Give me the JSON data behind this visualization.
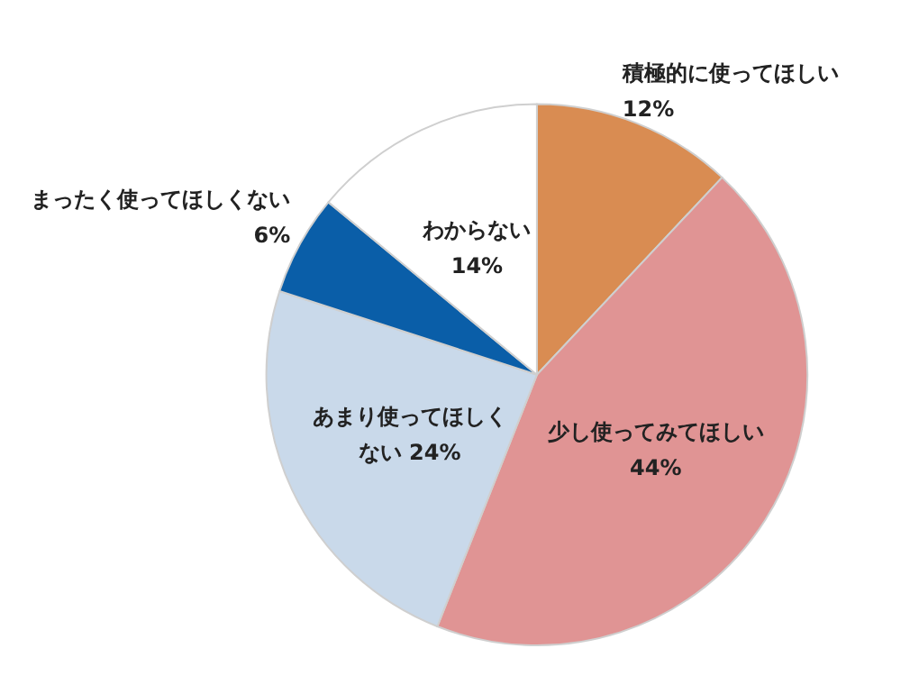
{
  "chart_data": {
    "type": "pie",
    "categories": [
      "積極的に使ってほしい",
      "少し使ってみてほしい",
      "あまり使ってほしくない",
      "まったく使ってほしくない",
      "わからない"
    ],
    "values": [
      12,
      44,
      24,
      6,
      14
    ],
    "colors": [
      "#d98c52",
      "#e09494",
      "#c9d9ea",
      "#0a5ea8",
      "#ffffff"
    ],
    "value_labels": [
      "12%",
      "44%",
      "24%",
      "6%",
      "14%"
    ]
  }
}
